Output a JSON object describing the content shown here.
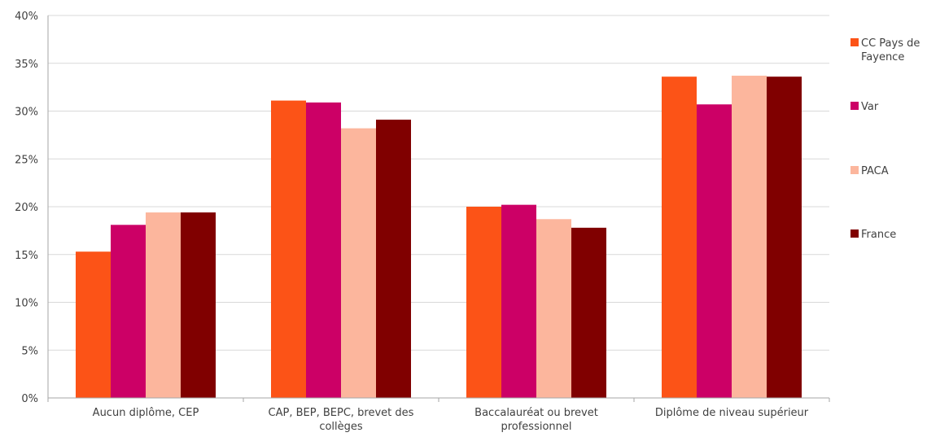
{
  "chart_data": {
    "type": "bar",
    "categories": [
      [
        "Aucun diplôme, CEP"
      ],
      [
        "CAP, BEP, BEPC, brevet des",
        "collèges"
      ],
      [
        "Baccalauréat ou brevet",
        "professionnel"
      ],
      [
        "Diplôme de niveau supérieur"
      ]
    ],
    "series": [
      {
        "name": [
          "CC Pays de",
          "Fayence"
        ],
        "color": "#fc5317",
        "values": [
          15.3,
          31.1,
          20.0,
          33.6
        ]
      },
      {
        "name": [
          "Var"
        ],
        "color": "#cc0066",
        "values": [
          18.1,
          30.9,
          20.2,
          30.7
        ]
      },
      {
        "name": [
          "PACA"
        ],
        "color": "#fcb69d",
        "values": [
          19.4,
          28.2,
          18.7,
          33.7
        ]
      },
      {
        "name": [
          "France"
        ],
        "color": "#800000",
        "values": [
          19.4,
          29.1,
          17.8,
          33.6
        ]
      }
    ],
    "yticks": [
      "0%",
      "5%",
      "10%",
      "15%",
      "20%",
      "25%",
      "30%",
      "35%",
      "40%"
    ],
    "ylim": [
      0,
      40
    ],
    "ystep": 5,
    "grid": true,
    "legend": "right"
  }
}
